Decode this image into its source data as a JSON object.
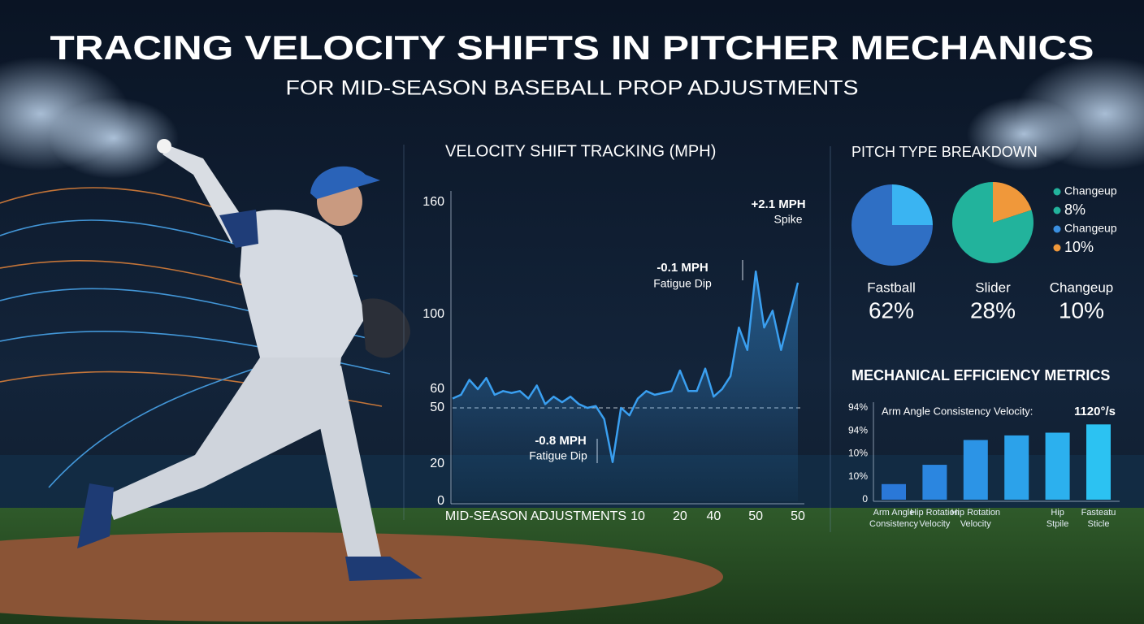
{
  "header": {
    "title": "TRACING VELOCITY SHIFTS IN PITCHER MECHANICS",
    "subtitle": "FOR MID-SEASON BASEBALL PROP ADJUSTMENTS"
  },
  "chart_data": [
    {
      "type": "line",
      "title": "VELOCITY SHIFT TRACKING (MPH)",
      "x_label": "MID-SEASON ADJUSTMENTS",
      "categories": [
        null,
        null,
        null,
        null,
        null,
        null,
        null,
        null,
        null,
        null,
        null,
        null,
        null,
        null,
        null,
        null,
        null,
        null,
        null,
        null,
        null,
        null,
        "10",
        null,
        null,
        null,
        null,
        "20",
        null,
        null,
        null,
        "40",
        null,
        null,
        null,
        null,
        "50",
        null,
        null,
        null,
        null,
        "50"
      ],
      "values": [
        55,
        57,
        65,
        60,
        66,
        57,
        59,
        58,
        59,
        55,
        62,
        52,
        56,
        53,
        56,
        52,
        50,
        51,
        44,
        21,
        50,
        46,
        55,
        59,
        57,
        58,
        59,
        70,
        59,
        59,
        71,
        56,
        60,
        67,
        93,
        81,
        123,
        93,
        102,
        81,
        99,
        117
      ],
      "color": "#3a9ff0",
      "ylim": [
        0,
        160
      ],
      "yticks": [
        0,
        20,
        50,
        60,
        100,
        160
      ],
      "grid": false,
      "hline": 50,
      "annotations": [
        {
          "text": "+2.1 MPH",
          "subtext": "Spike"
        },
        {
          "text": "-0.1 MPH",
          "subtext": "Fatigue Dip"
        },
        {
          "text": "-0.8 MPH",
          "subtext": "Fatigue Dip"
        }
      ]
    },
    {
      "type": "pie",
      "title": "PITCH TYPE BREAKDOWN",
      "pies": [
        {
          "values": [
            25,
            75
          ],
          "colors": [
            "#3ab4f2",
            "#2f6fc4"
          ]
        },
        {
          "values": [
            20,
            80
          ],
          "colors": [
            "#f0983a",
            "#22b39c"
          ]
        }
      ],
      "legend": [
        {
          "name": "Changeup",
          "color": "#22b39c"
        },
        {
          "name": "8%",
          "color": "#22b39c"
        },
        {
          "name": "Changeup",
          "color": "#3a8fe0"
        },
        {
          "name": "10%",
          "color": "#f0983a"
        }
      ],
      "categories": [
        "Fastball",
        "Slider",
        "Changeup"
      ],
      "values": [
        62,
        28,
        10
      ],
      "value_labels": [
        "62%",
        "28%",
        "10%"
      ]
    },
    {
      "type": "bar",
      "title": "MECHANICAL EFFICIENCY METRICS",
      "categories": [
        "Arm Angle\nConsistency",
        "Hip Rotation\nVelocity",
        "Hip Rotation\nVelocity",
        null,
        "Hip\nStpile",
        "Fasteatu\nSticle"
      ],
      "values": [
        17,
        38,
        65,
        70,
        73,
        82
      ],
      "colors": [
        "#2a78d8",
        "#2b86e0",
        "#2c94e6",
        "#2ca2ea",
        "#2cb0ee",
        "#2cc2f2"
      ],
      "ylim": [
        0,
        100
      ],
      "ytick_labels": [
        "94%",
        "94%",
        "10%",
        "10%",
        "0"
      ],
      "annotation": {
        "text": "Arm Angle Consistency Velocity:",
        "value": "1120°/s"
      }
    }
  ]
}
